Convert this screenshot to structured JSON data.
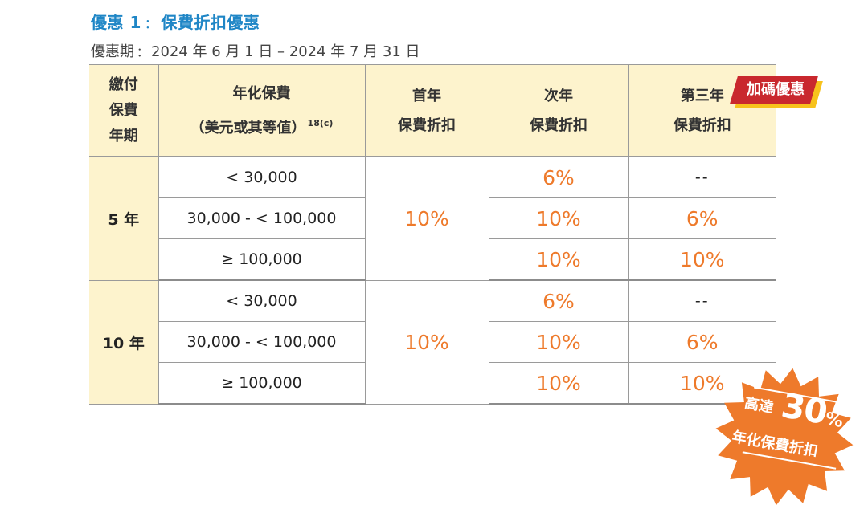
{
  "heading": {
    "prefix": "優惠 1",
    "sep": "：",
    "name": "保費折扣優惠"
  },
  "period": {
    "label": "優惠期",
    "sep": "：",
    "range": "2024 年 6 月 1 日 – 2024 年 7 月 31 日"
  },
  "table": {
    "headers": {
      "payment_term": [
        "繳付",
        "保費",
        "年期"
      ],
      "annual_premium": "年化保費",
      "annual_premium_note": "（美元或其等值）",
      "annual_premium_ref": "18(c)",
      "first_year": [
        "首年",
        "保費折扣"
      ],
      "second_year": [
        "次年",
        "保費折扣"
      ],
      "third_year": [
        "第三年",
        "保費折扣"
      ]
    },
    "bonus_tag": "加碼優惠",
    "groups": [
      {
        "term": "5 年",
        "first_year": "10%",
        "rows": [
          {
            "premium": "< 30,000",
            "second_year": "6%",
            "third_year": "--"
          },
          {
            "premium": "30,000 - < 100,000",
            "second_year": "10%",
            "third_year": "6%"
          },
          {
            "premium": "≥ 100,000",
            "second_year": "10%",
            "third_year": "10%"
          }
        ]
      },
      {
        "term": "10 年",
        "first_year": "10%",
        "rows": [
          {
            "premium": "< 30,000",
            "second_year": "6%",
            "third_year": "--"
          },
          {
            "premium": "30,000 - < 100,000",
            "second_year": "10%",
            "third_year": "6%"
          },
          {
            "premium": "≥ 100,000",
            "second_year": "10%",
            "third_year": "10%"
          }
        ]
      }
    ]
  },
  "badge": {
    "line1_small": "高達",
    "line1_big": "30",
    "line1_unit": "%",
    "line2": "年化保費折扣",
    "color": "#ee7a2b"
  },
  "colors": {
    "accent_blue": "#1f86c6",
    "accent_orange": "#ee7a2b",
    "header_bg": "#fdf3cd",
    "tag_red": "#c9282e",
    "tag_yellow": "#f7c21c"
  }
}
